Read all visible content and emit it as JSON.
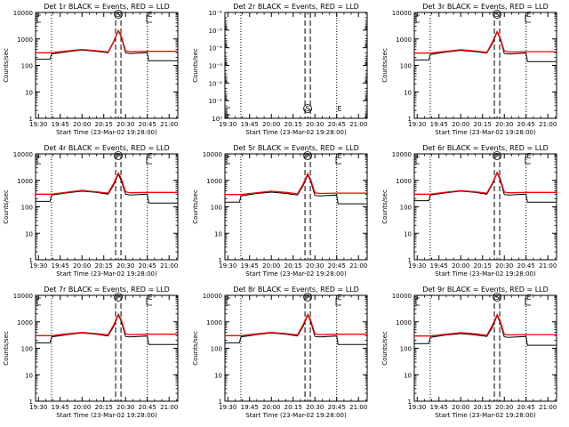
{
  "colors": {
    "events": "#000000",
    "lld": "#ff0000",
    "axis": "#000000",
    "background": "#ffffff"
  },
  "shared": {
    "ylabel": "Counts/sec",
    "xlabel": "Start Time (23-Mar-02 19:28:00)",
    "x_tick_labels": [
      "19:30",
      "19:45",
      "20:00",
      "20:15",
      "20:30",
      "20:45",
      "21:00"
    ],
    "log_y_tick_labels": [
      "1",
      "10",
      "100",
      "1000",
      "10000"
    ]
  },
  "chart_data": [
    {
      "type": "line",
      "title": "Det 1r BLACK = Events, RED = LLD",
      "y_scale": "log",
      "ylim": [
        1,
        10000
      ],
      "xlim": [
        "19:28",
        "21:06"
      ],
      "grid": false,
      "markers": {
        "S": "20:25",
        "E": "20:47"
      },
      "series": [
        {
          "name": "Events",
          "color": "#000000",
          "x": [
            "19:28",
            "19:38",
            "19:39",
            "19:50",
            "20:00",
            "20:10",
            "20:18",
            "20:22",
            "20:25",
            "20:27",
            "20:30",
            "20:33",
            "20:45",
            "20:46",
            "21:06"
          ],
          "y": [
            170,
            170,
            270,
            330,
            380,
            340,
            300,
            800,
            2000,
            1200,
            300,
            280,
            300,
            150,
            150
          ]
        },
        {
          "name": "LLD",
          "color": "#ff0000",
          "x": [
            "19:28",
            "19:39",
            "19:50",
            "20:00",
            "20:10",
            "20:18",
            "20:22",
            "20:25",
            "20:27",
            "20:30",
            "20:33",
            "20:45",
            "21:06"
          ],
          "y": [
            300,
            300,
            350,
            400,
            360,
            320,
            850,
            2100,
            1300,
            360,
            330,
            340,
            340
          ]
        }
      ]
    },
    {
      "type": "line",
      "title": "Det 2r BLACK = Events, RED = LLD",
      "y_scale": "log",
      "ylim": [
        1,
        1e-06
      ],
      "y_tick_labels": [
        "10⁻⁶",
        "10⁻⁵",
        "10⁻⁴",
        "10⁻³",
        "10⁻²",
        "10⁻¹",
        "10⁰"
      ],
      "xlim": [
        "19:28",
        "21:06"
      ],
      "grid": false,
      "markers": {
        "S": "20:25",
        "E": "20:47"
      },
      "series": []
    },
    {
      "type": "line",
      "title": "Det 3r BLACK = Events, RED = LLD",
      "y_scale": "log",
      "ylim": [
        1,
        10000
      ],
      "xlim": [
        "19:28",
        "21:06"
      ],
      "grid": false,
      "markers": {
        "S": "20:25",
        "E": "20:47"
      },
      "series": [
        {
          "name": "Events",
          "color": "#000000",
          "x": [
            "19:28",
            "19:38",
            "19:39",
            "19:50",
            "20:00",
            "20:10",
            "20:18",
            "20:22",
            "20:25",
            "20:27",
            "20:30",
            "20:33",
            "20:45",
            "20:46",
            "21:06"
          ],
          "y": [
            160,
            160,
            260,
            320,
            370,
            330,
            290,
            700,
            1800,
            1100,
            280,
            270,
            290,
            140,
            140
          ]
        },
        {
          "name": "LLD",
          "color": "#ff0000",
          "x": [
            "19:28",
            "19:39",
            "19:50",
            "20:00",
            "20:10",
            "20:18",
            "20:22",
            "20:25",
            "20:27",
            "20:30",
            "20:33",
            "20:45",
            "21:06"
          ],
          "y": [
            290,
            290,
            340,
            390,
            350,
            310,
            800,
            1900,
            1200,
            350,
            320,
            330,
            330
          ]
        }
      ]
    },
    {
      "type": "line",
      "title": "Det 4r BLACK = Events, RED = LLD",
      "y_scale": "log",
      "ylim": [
        1,
        10000
      ],
      "xlim": [
        "19:28",
        "21:06"
      ],
      "grid": false,
      "markers": {
        "P": "20:25",
        "E": "20:47"
      },
      "series": [
        {
          "name": "Events",
          "color": "#000000",
          "x": [
            "19:28",
            "19:38",
            "19:39",
            "19:50",
            "20:00",
            "20:10",
            "20:18",
            "20:22",
            "20:25",
            "20:27",
            "20:30",
            "20:33",
            "20:45",
            "20:46",
            "21:06"
          ],
          "y": [
            160,
            160,
            280,
            340,
            390,
            350,
            300,
            700,
            1700,
            1000,
            300,
            280,
            300,
            140,
            140
          ]
        },
        {
          "name": "LLD",
          "color": "#ff0000",
          "x": [
            "19:28",
            "19:39",
            "19:50",
            "20:00",
            "20:10",
            "20:18",
            "20:22",
            "20:25",
            "20:27",
            "20:30",
            "20:33",
            "20:45",
            "21:06"
          ],
          "y": [
            300,
            300,
            360,
            420,
            370,
            330,
            800,
            1900,
            1200,
            370,
            340,
            350,
            350
          ]
        }
      ]
    },
    {
      "type": "line",
      "title": "Det 5r BLACK = Events, RED = LLD",
      "y_scale": "log",
      "ylim": [
        1,
        10000
      ],
      "xlim": [
        "19:28",
        "21:06"
      ],
      "grid": false,
      "markers": {
        "P": "20:25",
        "E": "20:47"
      },
      "series": [
        {
          "name": "Events",
          "color": "#000000",
          "x": [
            "19:28",
            "19:38",
            "19:39",
            "19:50",
            "20:00",
            "20:10",
            "20:18",
            "20:22",
            "20:25",
            "20:27",
            "20:30",
            "20:33",
            "20:45",
            "20:46",
            "21:06"
          ],
          "y": [
            150,
            150,
            260,
            320,
            360,
            320,
            280,
            650,
            1600,
            950,
            270,
            260,
            280,
            130,
            130
          ]
        },
        {
          "name": "LLD",
          "color": "#ff0000",
          "x": [
            "19:28",
            "19:39",
            "19:50",
            "20:00",
            "20:10",
            "20:18",
            "20:22",
            "20:25",
            "20:27",
            "20:30",
            "20:33",
            "20:45",
            "21:06"
          ],
          "y": [
            290,
            290,
            340,
            390,
            350,
            310,
            760,
            1800,
            1100,
            340,
            320,
            330,
            330
          ]
        }
      ]
    },
    {
      "type": "line",
      "title": "Det 6r BLACK = Events, RED = LLD",
      "y_scale": "log",
      "ylim": [
        1,
        10000
      ],
      "xlim": [
        "19:28",
        "21:06"
      ],
      "grid": false,
      "markers": {
        "P": "20:25",
        "E": "20:47"
      },
      "series": [
        {
          "name": "Events",
          "color": "#000000",
          "x": [
            "19:28",
            "19:38",
            "19:39",
            "19:50",
            "20:00",
            "20:10",
            "20:18",
            "20:22",
            "20:25",
            "20:27",
            "20:30",
            "20:33",
            "20:45",
            "20:46",
            "21:06"
          ],
          "y": [
            170,
            170,
            280,
            340,
            390,
            350,
            300,
            750,
            1900,
            1100,
            290,
            280,
            300,
            150,
            150
          ]
        },
        {
          "name": "LLD",
          "color": "#ff0000",
          "x": [
            "19:28",
            "19:39",
            "19:50",
            "20:00",
            "20:10",
            "20:18",
            "20:22",
            "20:25",
            "20:27",
            "20:30",
            "20:33",
            "20:45",
            "21:06"
          ],
          "y": [
            300,
            300,
            360,
            410,
            370,
            330,
            820,
            2000,
            1250,
            360,
            340,
            350,
            350
          ]
        }
      ]
    },
    {
      "type": "line",
      "title": "Det 7r BLACK = Events, RED = LLD",
      "y_scale": "log",
      "ylim": [
        1,
        10000
      ],
      "xlim": [
        "19:28",
        "21:06"
      ],
      "grid": false,
      "markers": {
        "P": "20:25",
        "E": "20:47"
      },
      "series": [
        {
          "name": "Events",
          "color": "#000000",
          "x": [
            "19:28",
            "19:38",
            "19:39",
            "19:50",
            "20:00",
            "20:10",
            "20:18",
            "20:22",
            "20:25",
            "20:27",
            "20:30",
            "20:33",
            "20:45",
            "20:46",
            "21:06"
          ],
          "y": [
            160,
            160,
            270,
            330,
            380,
            340,
            290,
            700,
            1800,
            1050,
            280,
            270,
            290,
            140,
            140
          ]
        },
        {
          "name": "LLD",
          "color": "#ff0000",
          "x": [
            "19:28",
            "19:39",
            "19:50",
            "20:00",
            "20:10",
            "20:18",
            "20:22",
            "20:25",
            "20:27",
            "20:30",
            "20:33",
            "20:45",
            "21:06"
          ],
          "y": [
            300,
            300,
            350,
            400,
            360,
            320,
            800,
            1950,
            1200,
            350,
            330,
            340,
            340
          ]
        }
      ]
    },
    {
      "type": "line",
      "title": "Det 8r BLACK = Events, RED = LLD",
      "y_scale": "log",
      "ylim": [
        1,
        10000
      ],
      "xlim": [
        "19:28",
        "21:06"
      ],
      "grid": false,
      "markers": {
        "P": "20:25",
        "E": "20:47"
      },
      "series": [
        {
          "name": "Events",
          "color": "#000000",
          "x": [
            "19:28",
            "19:38",
            "19:39",
            "19:50",
            "20:00",
            "20:10",
            "20:18",
            "20:22",
            "20:25",
            "20:27",
            "20:30",
            "20:33",
            "20:45",
            "20:46",
            "21:06"
          ],
          "y": [
            160,
            160,
            270,
            330,
            380,
            340,
            290,
            700,
            1800,
            1050,
            280,
            270,
            290,
            140,
            140
          ]
        },
        {
          "name": "LLD",
          "color": "#ff0000",
          "x": [
            "19:28",
            "19:39",
            "19:50",
            "20:00",
            "20:10",
            "20:18",
            "20:22",
            "20:25",
            "20:27",
            "20:30",
            "20:33",
            "20:45",
            "21:06"
          ],
          "y": [
            300,
            300,
            350,
            400,
            360,
            320,
            800,
            1950,
            1200,
            350,
            330,
            340,
            340
          ]
        }
      ]
    },
    {
      "type": "line",
      "title": "Det 9r BLACK = Events, RED = LLD",
      "y_scale": "log",
      "ylim": [
        1,
        10000
      ],
      "xlim": [
        "19:28",
        "21:06"
      ],
      "grid": false,
      "markers": {
        "S": "20:25",
        "E": "20:47"
      },
      "series": [
        {
          "name": "Events",
          "color": "#000000",
          "x": [
            "19:28",
            "19:38",
            "19:39",
            "19:50",
            "20:00",
            "20:10",
            "20:18",
            "20:22",
            "20:25",
            "20:27",
            "20:30",
            "20:33",
            "20:45",
            "20:46",
            "21:06"
          ],
          "y": [
            150,
            150,
            260,
            320,
            360,
            320,
            280,
            650,
            1700,
            1000,
            270,
            260,
            280,
            130,
            130
          ]
        },
        {
          "name": "LLD",
          "color": "#ff0000",
          "x": [
            "19:28",
            "19:39",
            "19:50",
            "20:00",
            "20:10",
            "20:18",
            "20:22",
            "20:25",
            "20:27",
            "20:30",
            "20:33",
            "20:45",
            "21:06"
          ],
          "y": [
            290,
            290,
            340,
            390,
            350,
            310,
            780,
            1850,
            1150,
            340,
            320,
            330,
            330
          ]
        }
      ]
    }
  ]
}
